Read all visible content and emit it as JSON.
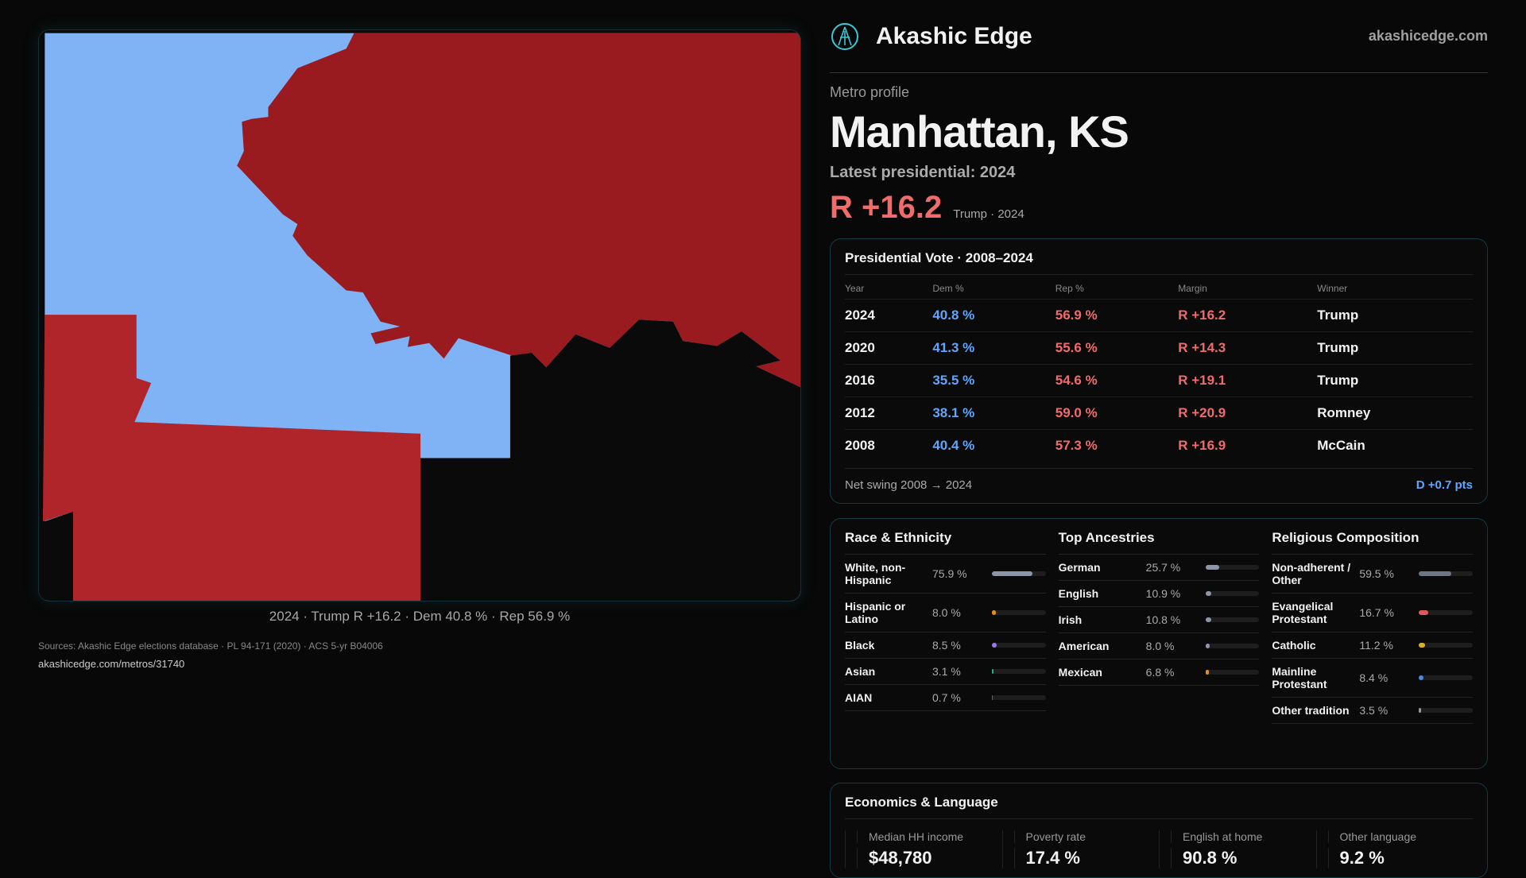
{
  "brand": {
    "name": "Akashic Edge",
    "site": "akashicedge.com",
    "logo": "akashic-logo-icon"
  },
  "profile": {
    "kicker": "Metro profile",
    "title": "Manhattan, KS",
    "latest": "Latest presidential: 2024",
    "margin": "R +16.2",
    "margin_sub": "Trump · 2024"
  },
  "map": {
    "caption": "2024 · Trump R +16.2 · Dem 40.8 % · Rep 56.9 %",
    "colors": {
      "dem": "#7fb3f5",
      "rep_strong": "#9a1b1f",
      "rep": "#b0252a"
    }
  },
  "vote": {
    "title": "Presidential Vote · 2008–2024",
    "headers": [
      "Year",
      "Dem %",
      "Rep %",
      "Margin",
      "Winner"
    ],
    "rows": [
      [
        "2024",
        "40.8 %",
        "56.9 %",
        "R +16.2",
        "Trump"
      ],
      [
        "2020",
        "41.3 %",
        "55.6 %",
        "R +14.3",
        "Trump"
      ],
      [
        "2016",
        "35.5 %",
        "54.6 %",
        "R +19.1",
        "Trump"
      ],
      [
        "2012",
        "38.1 %",
        "59.0 %",
        "R +20.9",
        "Romney"
      ],
      [
        "2008",
        "40.4 %",
        "57.3 %",
        "R +16.9",
        "McCain"
      ]
    ],
    "swing_label": "Net swing 2008 → 2024",
    "swing_value": "D +0.7 pts"
  },
  "race": {
    "title": "Race & Ethnicity",
    "items": [
      {
        "label": "White, non-Hispanic",
        "value": "75.9 %",
        "pct": 75.9,
        "color": "#8c96a8"
      },
      {
        "label": "Hispanic or Latino",
        "value": "8.0 %",
        "pct": 8.0,
        "color": "#e0901a"
      },
      {
        "label": "Black",
        "value": "8.5 %",
        "pct": 8.5,
        "color": "#9a7af0"
      },
      {
        "label": "Asian",
        "value": "3.1 %",
        "pct": 3.1,
        "color": "#20b090"
      },
      {
        "label": "AIAN",
        "value": "0.7 %",
        "pct": 0.7,
        "color": "#666"
      }
    ]
  },
  "ancestry": {
    "title": "Top Ancestries",
    "items": [
      {
        "label": "German",
        "value": "25.7 %",
        "pct": 25.7,
        "color": "#8c96a8"
      },
      {
        "label": "English",
        "value": "10.9 %",
        "pct": 10.9,
        "color": "#8c96a8"
      },
      {
        "label": "Irish",
        "value": "10.8 %",
        "pct": 10.8,
        "color": "#8c96a8"
      },
      {
        "label": "American",
        "value": "8.0 %",
        "pct": 8.0,
        "color": "#8c96a8"
      },
      {
        "label": "Mexican",
        "value": "6.8 %",
        "pct": 6.8,
        "color": "#e0901a"
      }
    ]
  },
  "religion": {
    "title": "Religious Composition",
    "items": [
      {
        "label": "Non-adherent / Other",
        "value": "59.5 %",
        "pct": 59.5,
        "color": "#6e7585"
      },
      {
        "label": "Evangelical Protestant",
        "value": "16.7 %",
        "pct": 16.7,
        "color": "#e05a5a"
      },
      {
        "label": "Catholic",
        "value": "11.2 %",
        "pct": 11.2,
        "color": "#e0b020"
      },
      {
        "label": "Mainline Protestant",
        "value": "8.4 %",
        "pct": 8.4,
        "color": "#4a8ae0"
      },
      {
        "label": "Other tradition",
        "value": "3.5 %",
        "pct": 3.5,
        "color": "#999"
      }
    ]
  },
  "econ": {
    "title": "Economics & Language",
    "items": [
      {
        "label": "Median HH income",
        "value": "$48,780"
      },
      {
        "label": "Poverty rate",
        "value": "17.4 %"
      },
      {
        "label": "English at home",
        "value": "90.8 %"
      },
      {
        "label": "Other language",
        "value": "9.2 %"
      }
    ]
  },
  "sources": "Sources: Akashic Edge elections database · PL 94-171 (2020) · ACS 5-yr B04006",
  "source_url": "akashicedge.com/metros/31740"
}
